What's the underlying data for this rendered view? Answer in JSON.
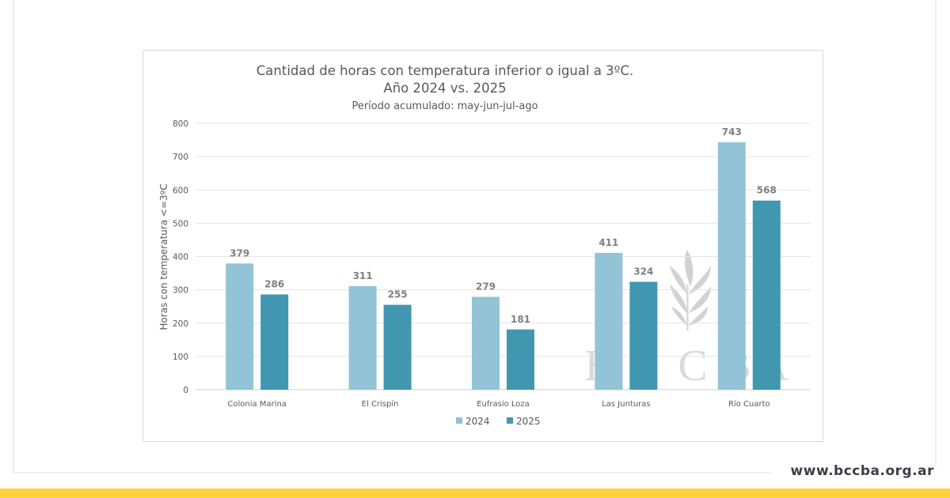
{
  "footer": {
    "url": "www.bccba.org.ar",
    "bar_color": "#ffd33b"
  },
  "watermark": {
    "text": "B C C B A",
    "letters": [
      "B",
      "C",
      "C",
      "B",
      "A"
    ],
    "icon": "wheat-icon"
  },
  "chart_data": {
    "type": "bar",
    "title": "Cantidad de horas con temperatura inferior o igual a 3ºC.",
    "subtitle": "Año 2024 vs. 2025",
    "subtitle2": "Período acumulado: may-jun-jul-ago",
    "xlabel": "",
    "ylabel": "Horas con temperatura <=3ºC",
    "ylim": [
      0,
      800
    ],
    "yticks": [
      0,
      100,
      200,
      300,
      400,
      500,
      600,
      700,
      800
    ],
    "grid": true,
    "legend_position": "bottom",
    "categories": [
      "Colonia Marina",
      "El Crispín",
      "Eufrasio Loza",
      "Las Junturas",
      "Río Cuarto"
    ],
    "series": [
      {
        "name": "2024",
        "color": "#92c3d6",
        "values": [
          379,
          311,
          279,
          411,
          743
        ]
      },
      {
        "name": "2025",
        "color": "#4197af",
        "values": [
          286,
          255,
          181,
          324,
          568
        ]
      }
    ]
  }
}
